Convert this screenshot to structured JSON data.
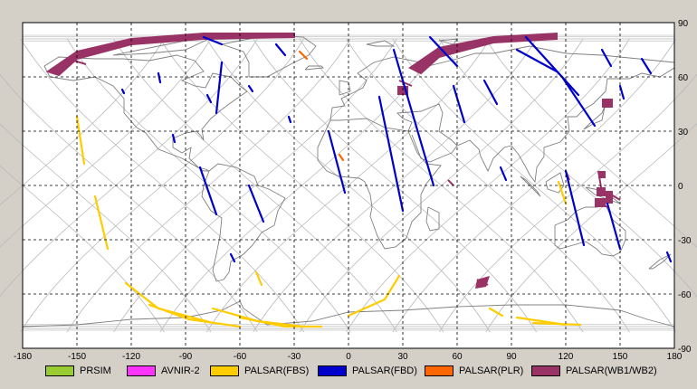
{
  "chart_data": {
    "type": "map",
    "projection": "equirectangular",
    "xlim": [
      -180,
      180
    ],
    "ylim": [
      -90,
      90
    ],
    "x_ticks": [
      -180,
      -150,
      -120,
      -90,
      -60,
      -30,
      0,
      30,
      60,
      90,
      120,
      150,
      180
    ],
    "y_ticks": [
      90,
      60,
      30,
      0,
      -30,
      -60,
      -90
    ],
    "grid": "dashed",
    "legend_placement": "bottom",
    "legend": [
      {
        "key": "prism",
        "label": "PRSIM",
        "color": "#99cc33"
      },
      {
        "key": "avnir2",
        "label": "AVNIR-2",
        "color": "#ff33ff"
      },
      {
        "key": "fbs",
        "label": "PALSAR(FBS)",
        "color": "#ffcc00"
      },
      {
        "key": "fbd",
        "label": "PALSAR(FBD)",
        "color": "#0000cc"
      },
      {
        "key": "plr",
        "label": "PALSAR(PLR)",
        "color": "#ff6600"
      },
      {
        "key": "wb",
        "label": "PALSAR(WB1/WB2)",
        "color": "#993366"
      }
    ],
    "paths": [
      {
        "sensor": "fbd",
        "points": [
          [
            -80,
            82
          ],
          [
            -70,
            78
          ]
        ]
      },
      {
        "sensor": "fbd",
        "points": [
          [
            -40,
            78
          ],
          [
            -35,
            72
          ]
        ]
      },
      {
        "sensor": "fbd",
        "points": [
          [
            -105,
            62
          ],
          [
            -104,
            57
          ]
        ]
      },
      {
        "sensor": "fbd",
        "points": [
          [
            -125,
            53
          ],
          [
            -124,
            51
          ]
        ]
      },
      {
        "sensor": "fbd",
        "points": [
          [
            -70,
            68
          ],
          [
            -73,
            40
          ]
        ]
      },
      {
        "sensor": "fbd",
        "points": [
          [
            -55,
            55
          ],
          [
            -53,
            52
          ]
        ]
      },
      {
        "sensor": "fbd",
        "points": [
          [
            -78,
            50
          ],
          [
            -76,
            46
          ]
        ]
      },
      {
        "sensor": "fbd",
        "points": [
          [
            -97,
            28
          ],
          [
            -96,
            24
          ]
        ]
      },
      {
        "sensor": "fbd",
        "points": [
          [
            -33,
            38
          ],
          [
            -32,
            35
          ]
        ]
      },
      {
        "sensor": "fbd",
        "points": [
          [
            -82,
            10
          ],
          [
            -73,
            -16
          ]
        ]
      },
      {
        "sensor": "fbd",
        "points": [
          [
            -55,
            0
          ],
          [
            -47,
            -20
          ]
        ]
      },
      {
        "sensor": "fbd",
        "points": [
          [
            -65,
            -38
          ],
          [
            -63,
            -42
          ]
        ]
      },
      {
        "sensor": "fbd",
        "points": [
          [
            -11,
            30
          ],
          [
            -2,
            -4
          ]
        ]
      },
      {
        "sensor": "fbd",
        "points": [
          [
            17,
            49
          ],
          [
            30,
            -14
          ]
        ]
      },
      {
        "sensor": "fbd",
        "points": [
          [
            25,
            75
          ],
          [
            47,
            0
          ]
        ]
      },
      {
        "sensor": "fbd",
        "points": [
          [
            45,
            82
          ],
          [
            60,
            66
          ]
        ]
      },
      {
        "sensor": "fbd",
        "points": [
          [
            58,
            55
          ],
          [
            64,
            35
          ]
        ]
      },
      {
        "sensor": "fbd",
        "points": [
          [
            75,
            58
          ],
          [
            82,
            45
          ]
        ]
      },
      {
        "sensor": "fbd",
        "points": [
          [
            93,
            75
          ],
          [
            115,
            63
          ]
        ]
      },
      {
        "sensor": "fbd",
        "points": [
          [
            98,
            82
          ],
          [
            127,
            50
          ]
        ]
      },
      {
        "sensor": "fbd",
        "points": [
          [
            84,
            10
          ],
          [
            87,
            3
          ]
        ]
      },
      {
        "sensor": "fbd",
        "points": [
          [
            118,
            60
          ],
          [
            136,
            33
          ]
        ]
      },
      {
        "sensor": "fbd",
        "points": [
          [
            140,
            75
          ],
          [
            145,
            66
          ]
        ]
      },
      {
        "sensor": "fbd",
        "points": [
          [
            150,
            55
          ],
          [
            152,
            48
          ]
        ]
      },
      {
        "sensor": "fbd",
        "points": [
          [
            162,
            70
          ],
          [
            167,
            62
          ]
        ]
      },
      {
        "sensor": "fbd",
        "points": [
          [
            120,
            8
          ],
          [
            130,
            -33
          ]
        ]
      },
      {
        "sensor": "fbd",
        "points": [
          [
            143,
            -10
          ],
          [
            150,
            -35
          ]
        ]
      },
      {
        "sensor": "fbd",
        "points": [
          [
            176,
            -37
          ],
          [
            178,
            -42
          ]
        ]
      },
      {
        "sensor": "fbs",
        "points": [
          [
            -150,
            38
          ],
          [
            -146,
            12
          ]
        ]
      },
      {
        "sensor": "fbs",
        "points": [
          [
            -140,
            -6
          ],
          [
            -133,
            -35
          ]
        ]
      },
      {
        "sensor": "fbs",
        "points": [
          [
            -123,
            -54
          ],
          [
            -105,
            -68
          ],
          [
            -75,
            -76
          ]
        ]
      },
      {
        "sensor": "fbs",
        "points": [
          [
            -110,
            -66
          ],
          [
            -88,
            -74
          ],
          [
            -60,
            -78
          ]
        ]
      },
      {
        "sensor": "fbs",
        "points": [
          [
            -75,
            -68
          ],
          [
            -50,
            -75
          ],
          [
            -25,
            -78
          ]
        ]
      },
      {
        "sensor": "fbs",
        "points": [
          [
            -60,
            -73
          ],
          [
            -35,
            -78
          ],
          [
            -15,
            -78
          ]
        ]
      },
      {
        "sensor": "fbs",
        "points": [
          [
            -51,
            -48
          ],
          [
            -48,
            -55
          ]
        ]
      },
      {
        "sensor": "fbs",
        "points": [
          [
            0,
            -72
          ],
          [
            20,
            -63
          ],
          [
            28,
            -50
          ]
        ]
      },
      {
        "sensor": "fbs",
        "points": [
          [
            78,
            -68
          ],
          [
            85,
            -72
          ]
        ]
      },
      {
        "sensor": "fbs",
        "points": [
          [
            93,
            -73
          ],
          [
            120,
            -77
          ]
        ]
      },
      {
        "sensor": "fbs",
        "points": [
          [
            102,
            -76
          ],
          [
            128,
            -77
          ]
        ]
      },
      {
        "sensor": "fbs",
        "points": [
          [
            116,
            2
          ],
          [
            120,
            -10
          ]
        ]
      },
      {
        "sensor": "plr",
        "points": [
          [
            -27,
            74
          ],
          [
            -23,
            70
          ]
        ]
      },
      {
        "sensor": "plr",
        "points": [
          [
            -5,
            17
          ],
          [
            -3,
            14
          ]
        ]
      }
    ],
    "wb_swaths": [
      {
        "points": [
          [
            -166,
            63
          ],
          [
            -150,
            74
          ],
          [
            -120,
            81
          ],
          [
            -80,
            84
          ],
          [
            -30,
            84
          ],
          [
            -30,
            82
          ],
          [
            -80,
            81
          ],
          [
            -120,
            78
          ],
          [
            -150,
            70
          ],
          [
            -160,
            61
          ]
        ]
      },
      {
        "points": [
          [
            34,
            65
          ],
          [
            50,
            76
          ],
          [
            80,
            82
          ],
          [
            115,
            84
          ],
          [
            115,
            81
          ],
          [
            80,
            79
          ],
          [
            50,
            71
          ],
          [
            40,
            62
          ]
        ]
      },
      {
        "points": [
          [
            -155,
            70
          ],
          [
            -145,
            67
          ]
        ]
      },
      {
        "points": [
          [
            28,
            58
          ],
          [
            35,
            55
          ]
        ]
      },
      {
        "points": [
          [
            142,
            47
          ],
          [
            145,
            44
          ]
        ]
      },
      {
        "points": [
          [
            138,
            -9
          ],
          [
            143,
            -12
          ]
        ]
      },
      {
        "points": [
          [
            138,
            8
          ],
          [
            140,
            -4
          ]
        ]
      },
      {
        "points": [
          [
            120,
            8
          ],
          [
            122,
            3
          ]
        ]
      },
      {
        "points": [
          [
            71,
            -52
          ],
          [
            77,
            -55
          ]
        ]
      },
      {
        "points": [
          [
            55,
            3
          ],
          [
            58,
            0
          ]
        ]
      },
      {
        "points": [
          [
            145,
            -5
          ],
          [
            150,
            -8
          ]
        ]
      }
    ],
    "wb_blocks": [
      {
        "points": [
          [
            27,
            55
          ],
          [
            33,
            55
          ],
          [
            33,
            50
          ],
          [
            27,
            50
          ]
        ]
      },
      {
        "points": [
          [
            140,
            48
          ],
          [
            146,
            48
          ],
          [
            146,
            43
          ],
          [
            140,
            43
          ]
        ]
      },
      {
        "points": [
          [
            138,
            8
          ],
          [
            142,
            8
          ],
          [
            142,
            4
          ],
          [
            138,
            4
          ]
        ]
      },
      {
        "points": [
          [
            137,
            -1
          ],
          [
            142,
            -1
          ],
          [
            142,
            -6
          ],
          [
            137,
            -6
          ]
        ]
      },
      {
        "points": [
          [
            136,
            -7
          ],
          [
            142,
            -7
          ],
          [
            142,
            -12
          ],
          [
            136,
            -12
          ]
        ]
      },
      {
        "points": [
          [
            142,
            -3
          ],
          [
            146,
            -3
          ],
          [
            146,
            -10
          ],
          [
            142,
            -10
          ]
        ]
      },
      {
        "points": [
          [
            71,
            -52
          ],
          [
            78,
            -50
          ],
          [
            76,
            -56
          ],
          [
            70,
            -57
          ]
        ]
      }
    ]
  }
}
